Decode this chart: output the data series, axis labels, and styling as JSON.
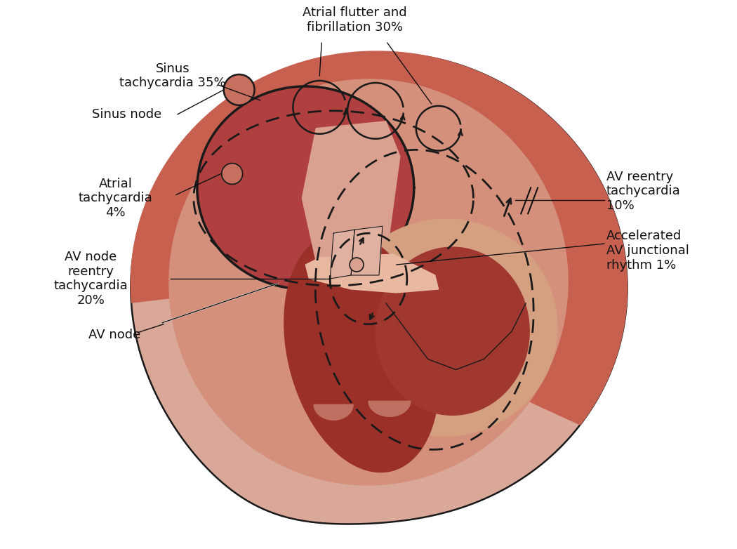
{
  "bg_color": "#ffffff",
  "c_outer_light": "#dda898",
  "c_outer_rim": "#c96050",
  "c_mid_pink": "#d4907a",
  "c_atrium_dark": "#b85040",
  "c_body_dark": "#a84038",
  "c_ventricle_dark": "#9a3530",
  "c_right_crescent": "#c87060",
  "c_inner_wall": "#e0a890",
  "c_outline": "#1a1a1a",
  "labels": {
    "atrial_flutter": "Atrial flutter and\nfibrillation 30%",
    "sinus_tach": "Sinus\ntachycardia 35%",
    "sinus_node": "Sinus node",
    "atrial_tach": "Atrial\ntachycardia\n4%",
    "av_node_reentry": "AV node\nreentry\ntachycardia\n20%",
    "av_node": "AV node",
    "av_reentry": "AV reentry\ntachycardia\n10%",
    "accelerated": "Accelerated\nAV junctional\nrhythm 1%"
  },
  "fontsize": 13
}
